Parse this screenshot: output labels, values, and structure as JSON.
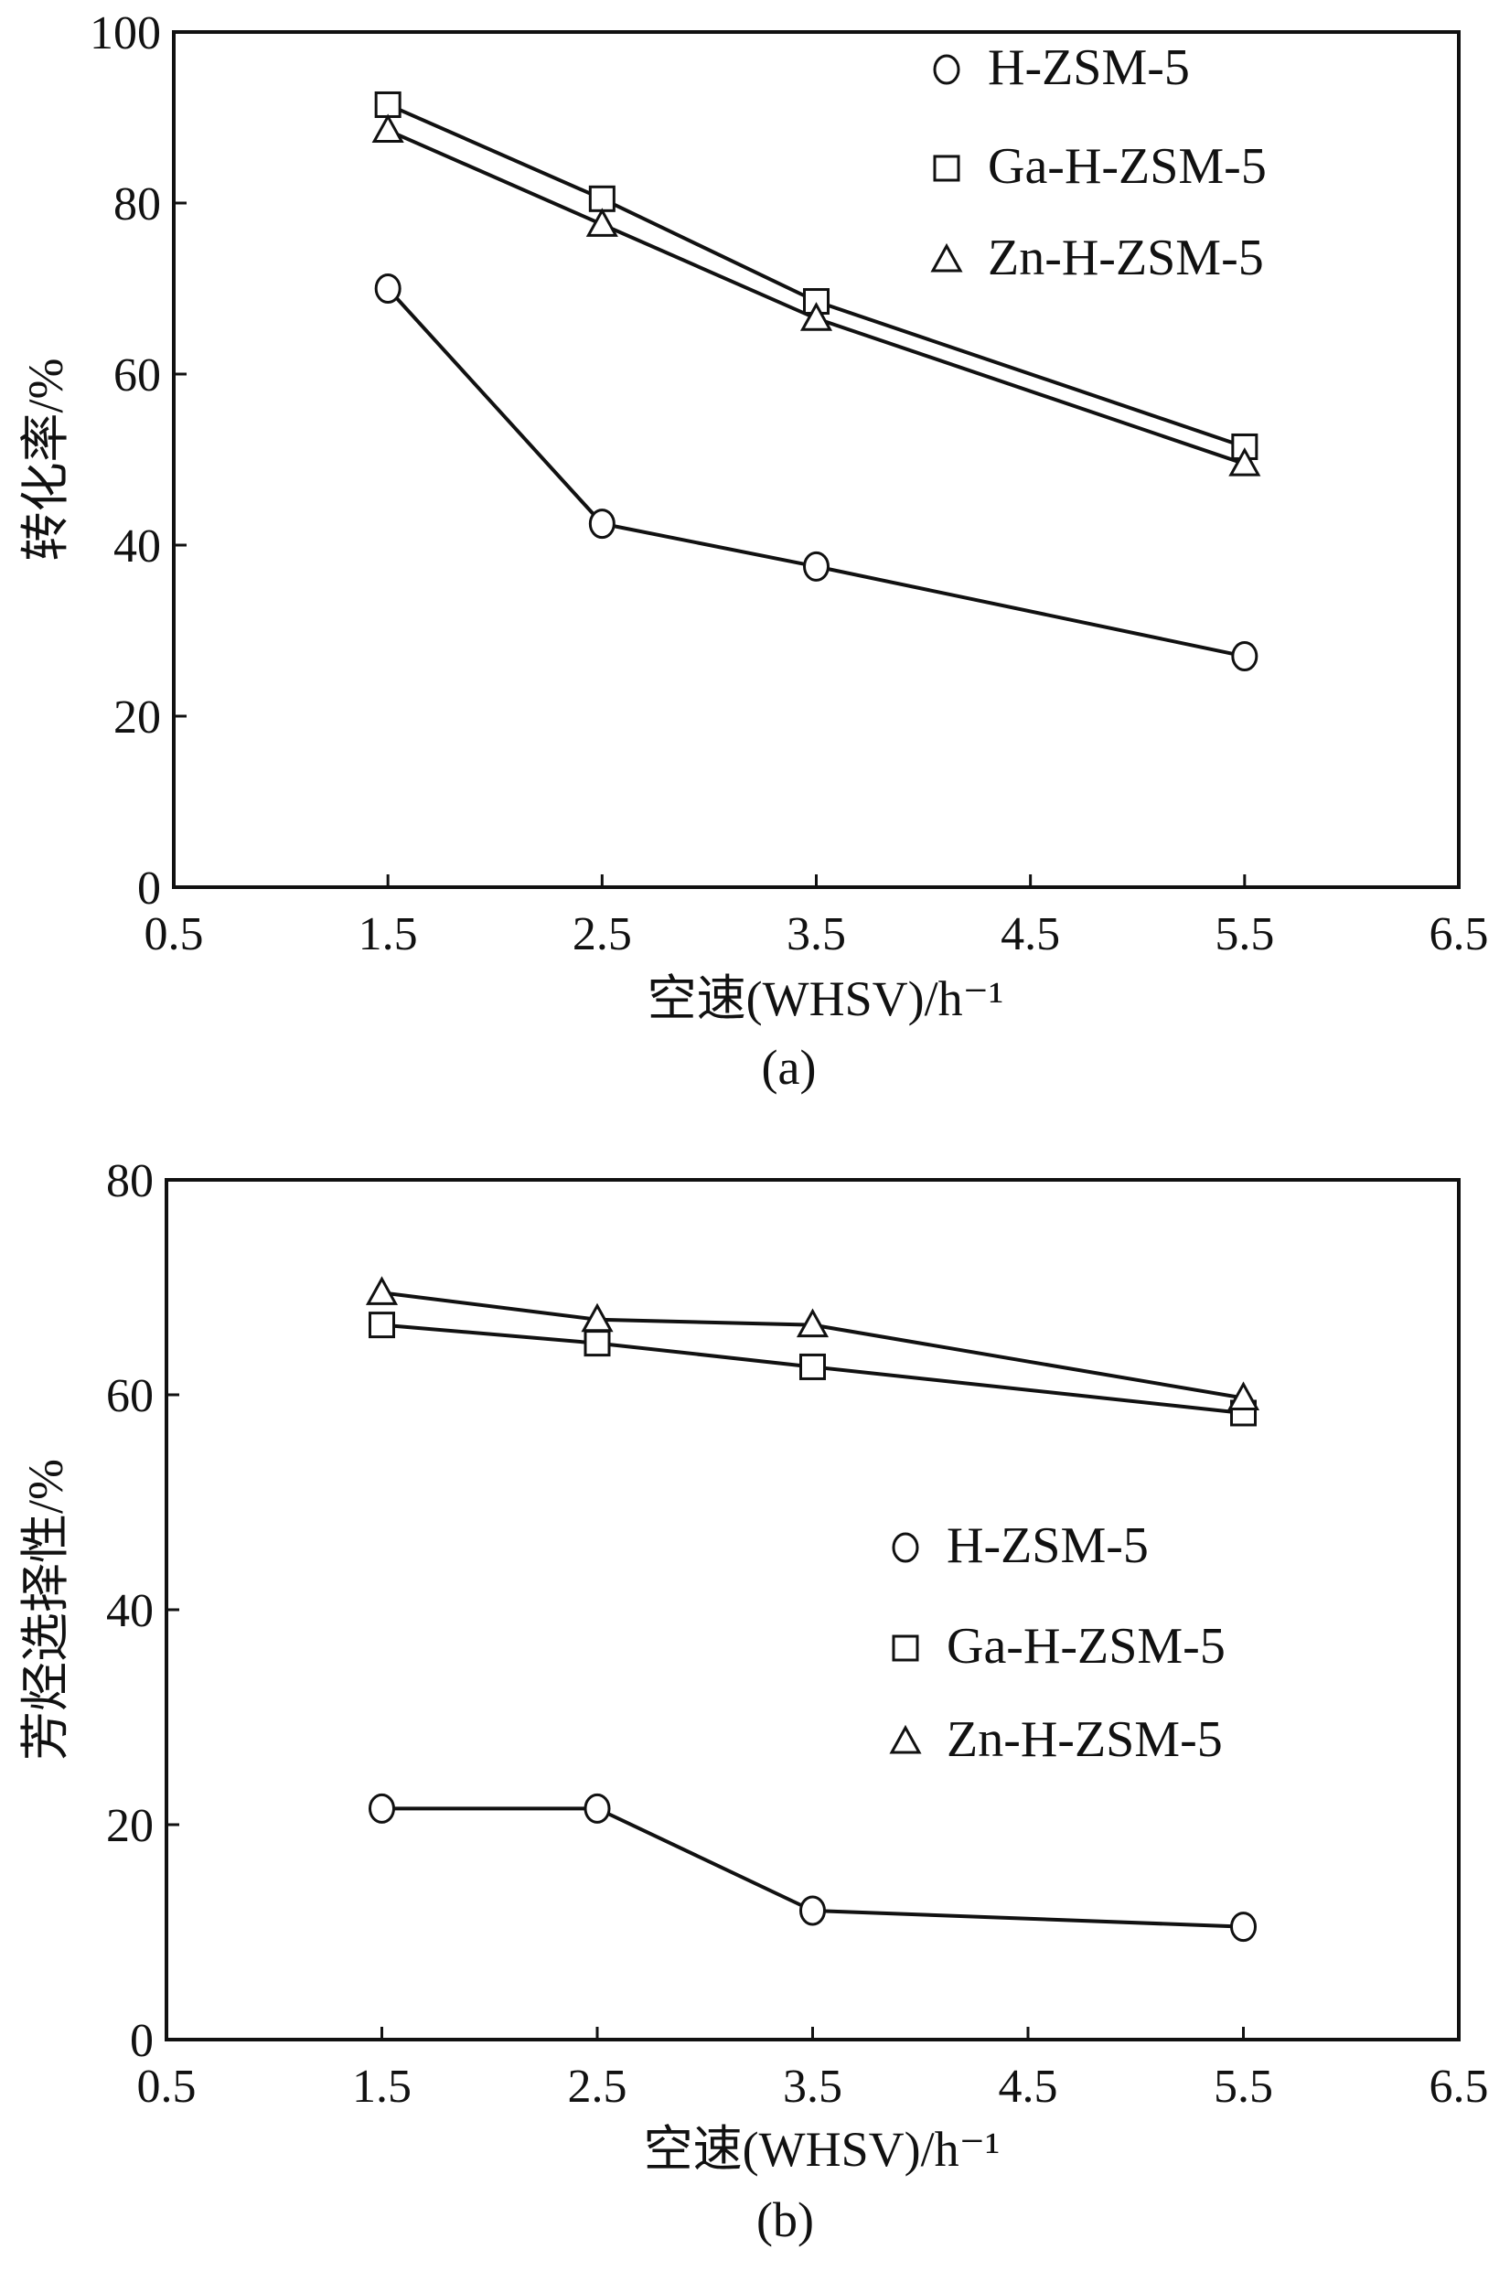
{
  "chart_data": [
    {
      "type": "line",
      "panel_label": "(a)",
      "xlabel": "空速(WHSV)/h⁻¹",
      "ylabel": "转化率/%",
      "xlim": [
        0.5,
        6.5
      ],
      "ylim": [
        0,
        100
      ],
      "xticks": [
        "0.5",
        "1.5",
        "2.5",
        "3.5",
        "4.5",
        "5.5",
        "6.5"
      ],
      "yticks": [
        "0",
        "20",
        "40",
        "60",
        "80",
        "100"
      ],
      "x": [
        1.5,
        2.5,
        3.5,
        5.5
      ],
      "legend_position": "top-right",
      "series": [
        {
          "name": "H-ZSM-5",
          "marker": "circle",
          "values": [
            70,
            42.5,
            37.5,
            27
          ]
        },
        {
          "name": "Ga-H-ZSM-5",
          "marker": "square",
          "values": [
            91.5,
            80.5,
            68.5,
            51.5
          ]
        },
        {
          "name": "Zn-H-ZSM-5",
          "marker": "triangle",
          "values": [
            88.5,
            77.5,
            66.5,
            49.5
          ]
        }
      ]
    },
    {
      "type": "line",
      "panel_label": "(b)",
      "xlabel": "空速(WHSV)/h⁻¹",
      "ylabel": "芳烃选择性/%",
      "xlim": [
        0.5,
        6.5
      ],
      "ylim": [
        0,
        80
      ],
      "xticks": [
        "0.5",
        "1.5",
        "2.5",
        "3.5",
        "4.5",
        "5.5",
        "6.5"
      ],
      "yticks": [
        "0",
        "20",
        "40",
        "60",
        "80"
      ],
      "x": [
        1.5,
        2.5,
        3.5,
        5.5
      ],
      "legend_position": "center-right",
      "series": [
        {
          "name": "H-ZSM-5",
          "marker": "circle",
          "values": [
            21.5,
            21.5,
            12,
            10.5
          ]
        },
        {
          "name": "Ga-H-ZSM-5",
          "marker": "square",
          "values": [
            66.5,
            64.8,
            62.6,
            58.3
          ]
        },
        {
          "name": "Zn-H-ZSM-5",
          "marker": "triangle",
          "values": [
            69.5,
            67,
            66.5,
            59.7
          ]
        }
      ]
    }
  ]
}
